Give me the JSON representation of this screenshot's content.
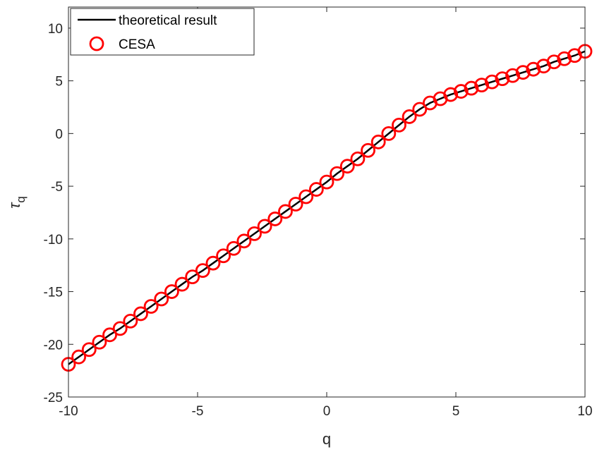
{
  "chart_data": {
    "type": "line",
    "title": "",
    "xlabel": "q",
    "ylabel_base": "τ",
    "ylabel_sub": "q",
    "xlim": [
      -10,
      10
    ],
    "ylim": [
      -25,
      12
    ],
    "xticks": [
      -10,
      -5,
      0,
      5,
      10
    ],
    "yticks": [
      -25,
      -20,
      -15,
      -10,
      -5,
      0,
      5,
      10
    ],
    "xtick_labels": [
      "-10",
      "-5",
      "0",
      "5",
      "10"
    ],
    "ytick_labels": [
      "-25",
      "-20",
      "-15",
      "-10",
      "-5",
      "0",
      "5",
      "10"
    ],
    "grid": false,
    "legend_position": "top-left",
    "x": [
      -10,
      -9.6,
      -9.2,
      -8.8,
      -8.4,
      -8,
      -7.6,
      -7.2,
      -6.8,
      -6.4,
      -6,
      -5.6,
      -5.2,
      -4.8,
      -4.4,
      -4,
      -3.6,
      -3.2,
      -2.8,
      -2.4,
      -2,
      -1.6,
      -1.2,
      -0.8,
      -0.4,
      0,
      0.4,
      0.8,
      1.2,
      1.6,
      2,
      2.4,
      2.8,
      3.2,
      3.6,
      4,
      4.4,
      4.8,
      5.2,
      5.6,
      6,
      6.4,
      6.8,
      7.2,
      7.6,
      8,
      8.4,
      8.8,
      9.2,
      9.6,
      10
    ],
    "series": [
      {
        "name": "theoretical result",
        "style": "line",
        "color": "#000000",
        "values": [
          -21.9,
          -21.2,
          -20.5,
          -19.8,
          -19.1,
          -18.5,
          -17.8,
          -17.1,
          -16.4,
          -15.7,
          -15.0,
          -14.3,
          -13.6,
          -13.0,
          -12.3,
          -11.6,
          -10.9,
          -10.2,
          -9.5,
          -8.8,
          -8.1,
          -7.4,
          -6.7,
          -6.0,
          -5.3,
          -4.6,
          -3.8,
          -3.1,
          -2.4,
          -1.6,
          -0.8,
          0.0,
          0.8,
          1.6,
          2.3,
          2.9,
          3.3,
          3.7,
          4.0,
          4.3,
          4.6,
          4.9,
          5.2,
          5.5,
          5.8,
          6.1,
          6.4,
          6.8,
          7.1,
          7.4,
          7.8
        ]
      },
      {
        "name": "CESA",
        "style": "markers",
        "marker": "circle",
        "color": "#ff0000",
        "values": [
          -21.9,
          -21.2,
          -20.5,
          -19.8,
          -19.1,
          -18.5,
          -17.8,
          -17.1,
          -16.4,
          -15.7,
          -15.0,
          -14.3,
          -13.6,
          -13.0,
          -12.3,
          -11.6,
          -10.9,
          -10.2,
          -9.5,
          -8.8,
          -8.1,
          -7.4,
          -6.7,
          -6.0,
          -5.3,
          -4.6,
          -3.8,
          -3.1,
          -2.4,
          -1.6,
          -0.8,
          0.0,
          0.8,
          1.6,
          2.3,
          2.9,
          3.3,
          3.7,
          4.0,
          4.3,
          4.6,
          4.9,
          5.2,
          5.5,
          5.8,
          6.1,
          6.4,
          6.8,
          7.1,
          7.4,
          7.8
        ]
      }
    ]
  }
}
